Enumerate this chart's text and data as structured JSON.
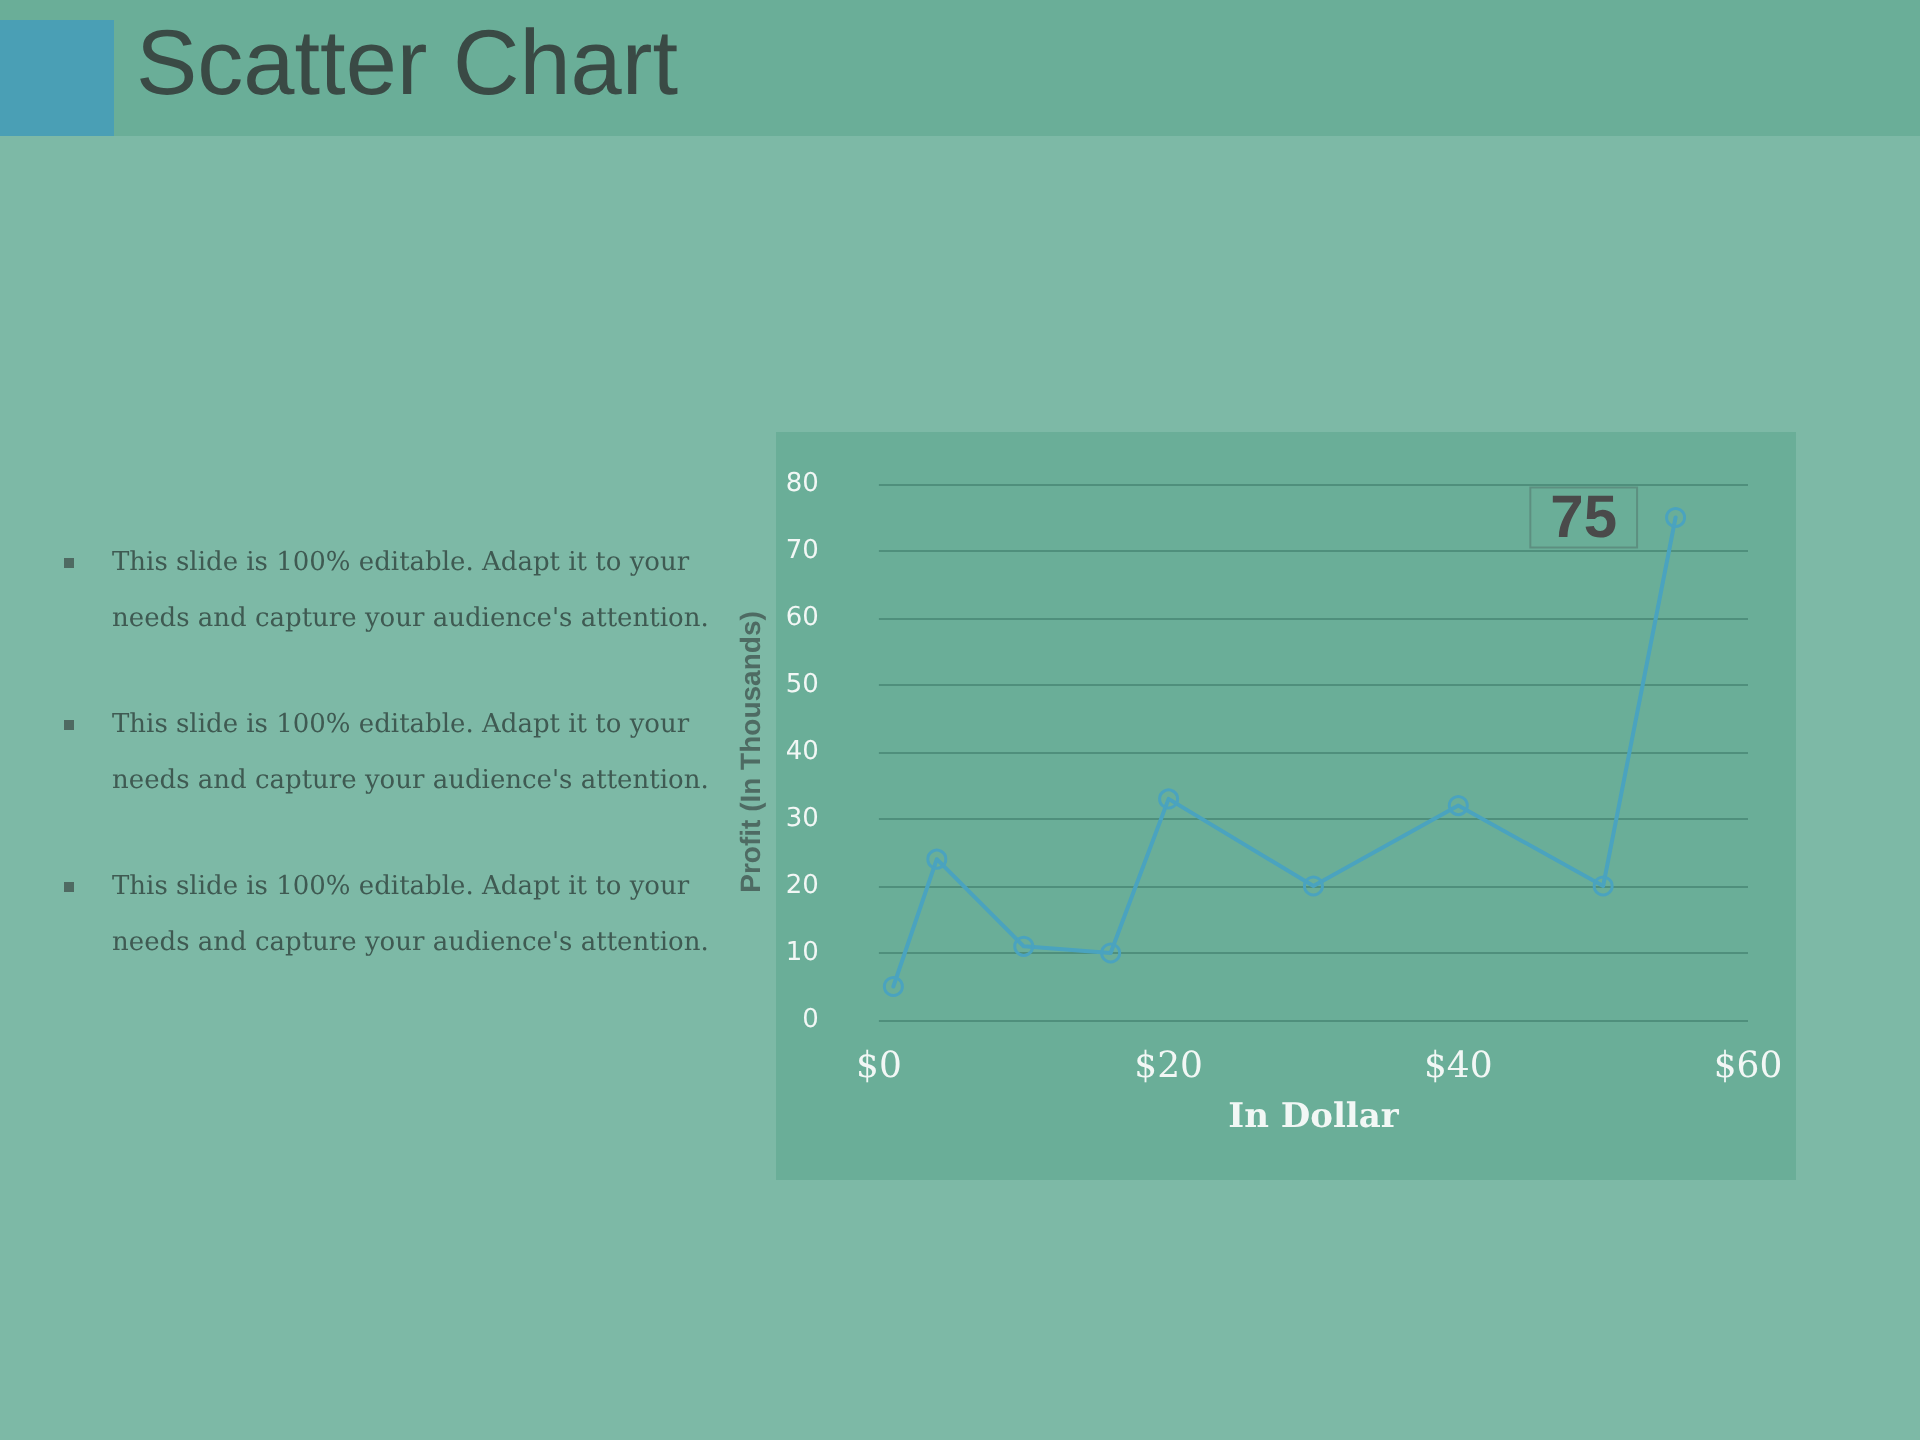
{
  "chart_data": {
    "type": "line",
    "title": "Scatter Chart",
    "annotations": [
      "This slide is 100% editable. Adapt it to your needs and capture your audience's attention.",
      "This slide is 100% editable. Adapt it to your needs and capture your audience's attention.",
      "This slide is 100% editable. Adapt it to your needs and capture your audience's attention."
    ],
    "xlabel": "In Dollar",
    "ylabel": "Profit (In Thousands)",
    "x": [
      1,
      4,
      10,
      16,
      20,
      30,
      40,
      50,
      55
    ],
    "series": [
      {
        "color": "#4aa3bf",
        "values": [
          5,
          24,
          11,
          10,
          33,
          20,
          32,
          20,
          75
        ],
        "value_labels": [
          null,
          null,
          null,
          null,
          null,
          null,
          null,
          null,
          "75"
        ]
      }
    ],
    "xlim": [
      0,
      60
    ],
    "xticks": [
      {
        "value": 0,
        "label": "$0"
      },
      {
        "value": 20,
        "label": "$20"
      },
      {
        "value": 40,
        "label": "$40"
      },
      {
        "value": 60,
        "label": "$60"
      }
    ],
    "ylim": [
      0,
      80
    ],
    "yticks": [
      0,
      10,
      20,
      30,
      40,
      50,
      60,
      70,
      80
    ],
    "grid": "y",
    "marker": "circle",
    "line_style": "solid"
  }
}
